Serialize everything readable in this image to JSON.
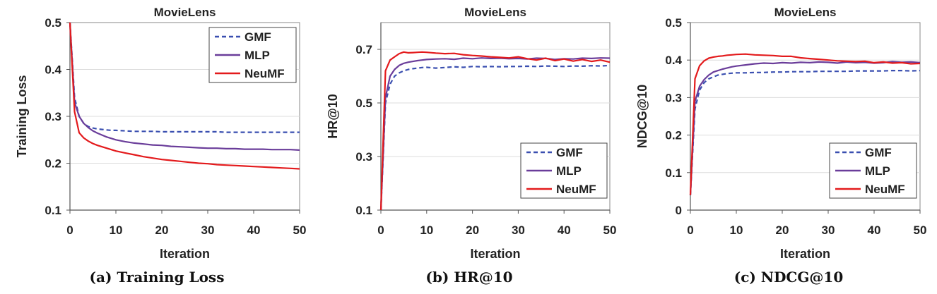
{
  "chart_data": [
    {
      "type": "line",
      "caption": "(a) Training Loss",
      "title": "MovieLens",
      "xlabel": "Iteration",
      "ylabel": "Training Loss",
      "xlim": [
        0,
        50
      ],
      "ylim": [
        0.1,
        0.5
      ],
      "xticks": [
        0,
        10,
        20,
        30,
        40,
        50
      ],
      "yticks": [
        0.1,
        0.2,
        0.3,
        0.4,
        0.5
      ],
      "ytick_labels": [
        "0.1",
        "0.2",
        "0.3",
        "0.4",
        "0.5"
      ],
      "grid": true,
      "legend_position": "top-right",
      "x": [
        0,
        1,
        2,
        3,
        4,
        5,
        6,
        7,
        8,
        9,
        10,
        12,
        14,
        16,
        18,
        20,
        22,
        24,
        26,
        28,
        30,
        32,
        34,
        36,
        38,
        40,
        42,
        44,
        46,
        48,
        50
      ],
      "series": [
        {
          "name": "GMF",
          "style": "dashed",
          "color": "#3a4fb0",
          "values": [
            0.5,
            0.34,
            0.3,
            0.285,
            0.278,
            0.275,
            0.273,
            0.272,
            0.271,
            0.27,
            0.27,
            0.269,
            0.268,
            0.268,
            0.268,
            0.267,
            0.267,
            0.267,
            0.267,
            0.267,
            0.267,
            0.267,
            0.266,
            0.266,
            0.266,
            0.266,
            0.266,
            0.266,
            0.266,
            0.266,
            0.266
          ]
        },
        {
          "name": "MLP",
          "style": "solid",
          "color": "#6a3d9a",
          "values": [
            0.5,
            0.33,
            0.3,
            0.285,
            0.276,
            0.269,
            0.264,
            0.26,
            0.256,
            0.253,
            0.25,
            0.246,
            0.243,
            0.241,
            0.239,
            0.238,
            0.236,
            0.235,
            0.234,
            0.233,
            0.232,
            0.232,
            0.231,
            0.231,
            0.23,
            0.23,
            0.23,
            0.229,
            0.229,
            0.229,
            0.228
          ]
        },
        {
          "name": "NeuMF",
          "style": "solid",
          "color": "#e31a1c",
          "values": [
            0.5,
            0.31,
            0.265,
            0.254,
            0.247,
            0.242,
            0.238,
            0.235,
            0.232,
            0.229,
            0.226,
            0.222,
            0.218,
            0.214,
            0.211,
            0.208,
            0.206,
            0.204,
            0.202,
            0.2,
            0.199,
            0.197,
            0.196,
            0.195,
            0.194,
            0.193,
            0.192,
            0.191,
            0.19,
            0.189,
            0.188
          ]
        }
      ]
    },
    {
      "type": "line",
      "caption": "(b) HR@10",
      "title": "MovieLens",
      "xlabel": "Iteration",
      "ylabel": "HR@10",
      "xlim": [
        0,
        50
      ],
      "ylim": [
        0.1,
        0.8
      ],
      "xticks": [
        0,
        10,
        20,
        30,
        40,
        50
      ],
      "yticks": [
        0.1,
        0.3,
        0.5,
        0.7
      ],
      "ytick_labels": [
        "0.1",
        "0.3",
        "0.5",
        "0.7"
      ],
      "grid": true,
      "legend_position": "bottom-right",
      "x": [
        0,
        1,
        2,
        3,
        4,
        5,
        6,
        7,
        8,
        9,
        10,
        12,
        14,
        16,
        18,
        20,
        22,
        24,
        26,
        28,
        30,
        32,
        34,
        36,
        38,
        40,
        42,
        44,
        46,
        48,
        50
      ],
      "series": [
        {
          "name": "GMF",
          "style": "dashed",
          "color": "#3a4fb0",
          "values": [
            0.1,
            0.5,
            0.57,
            0.6,
            0.612,
            0.62,
            0.625,
            0.628,
            0.63,
            0.632,
            0.633,
            0.63,
            0.632,
            0.635,
            0.633,
            0.636,
            0.635,
            0.636,
            0.635,
            0.636,
            0.636,
            0.637,
            0.636,
            0.638,
            0.637,
            0.636,
            0.638,
            0.637,
            0.639,
            0.638,
            0.64
          ]
        },
        {
          "name": "MLP",
          "style": "solid",
          "color": "#6a3d9a",
          "values": [
            0.1,
            0.52,
            0.6,
            0.625,
            0.64,
            0.648,
            0.652,
            0.655,
            0.658,
            0.66,
            0.662,
            0.664,
            0.665,
            0.663,
            0.667,
            0.665,
            0.668,
            0.666,
            0.667,
            0.665,
            0.666,
            0.664,
            0.667,
            0.666,
            0.662,
            0.665,
            0.664,
            0.667,
            0.666,
            0.668,
            0.667
          ]
        },
        {
          "name": "NeuMF",
          "style": "solid",
          "color": "#e31a1c",
          "values": [
            0.1,
            0.62,
            0.66,
            0.672,
            0.684,
            0.69,
            0.687,
            0.688,
            0.689,
            0.69,
            0.689,
            0.686,
            0.684,
            0.685,
            0.68,
            0.677,
            0.675,
            0.672,
            0.67,
            0.668,
            0.672,
            0.665,
            0.66,
            0.667,
            0.658,
            0.664,
            0.656,
            0.662,
            0.655,
            0.66,
            0.652
          ]
        }
      ]
    },
    {
      "type": "line",
      "caption": "(c) NDCG@10",
      "title": "MovieLens",
      "xlabel": "Iteration",
      "ylabel": "NDCG@10",
      "xlim": [
        0,
        50
      ],
      "ylim": [
        0,
        0.5
      ],
      "xticks": [
        0,
        10,
        20,
        30,
        40,
        50
      ],
      "yticks": [
        0,
        0.1,
        0.2,
        0.3,
        0.4,
        0.5
      ],
      "ytick_labels": [
        "0",
        "0.1",
        "0.2",
        "0.3",
        "0.4",
        "0.5"
      ],
      "grid": true,
      "legend_position": "bottom-right",
      "x": [
        0,
        1,
        2,
        3,
        4,
        5,
        6,
        7,
        8,
        9,
        10,
        12,
        14,
        16,
        18,
        20,
        22,
        24,
        26,
        28,
        30,
        32,
        34,
        36,
        38,
        40,
        42,
        44,
        46,
        48,
        50
      ],
      "series": [
        {
          "name": "GMF",
          "style": "dashed",
          "color": "#3a4fb0",
          "values": [
            0.04,
            0.27,
            0.32,
            0.34,
            0.35,
            0.355,
            0.36,
            0.362,
            0.364,
            0.365,
            0.366,
            0.366,
            0.367,
            0.367,
            0.368,
            0.368,
            0.369,
            0.369,
            0.369,
            0.37,
            0.37,
            0.37,
            0.37,
            0.371,
            0.371,
            0.371,
            0.371,
            0.372,
            0.372,
            0.371,
            0.372
          ]
        },
        {
          "name": "MLP",
          "style": "solid",
          "color": "#6a3d9a",
          "values": [
            0.04,
            0.29,
            0.33,
            0.348,
            0.36,
            0.368,
            0.372,
            0.376,
            0.379,
            0.382,
            0.384,
            0.387,
            0.39,
            0.392,
            0.391,
            0.393,
            0.392,
            0.394,
            0.393,
            0.395,
            0.394,
            0.392,
            0.395,
            0.393,
            0.394,
            0.392,
            0.393,
            0.396,
            0.394,
            0.395,
            0.393
          ]
        },
        {
          "name": "NeuMF",
          "style": "solid",
          "color": "#e31a1c",
          "values": [
            0.04,
            0.35,
            0.385,
            0.398,
            0.405,
            0.408,
            0.41,
            0.411,
            0.413,
            0.414,
            0.415,
            0.416,
            0.414,
            0.413,
            0.412,
            0.41,
            0.41,
            0.406,
            0.404,
            0.402,
            0.4,
            0.398,
            0.397,
            0.396,
            0.397,
            0.393,
            0.395,
            0.392,
            0.393,
            0.39,
            0.391
          ]
        }
      ]
    }
  ]
}
